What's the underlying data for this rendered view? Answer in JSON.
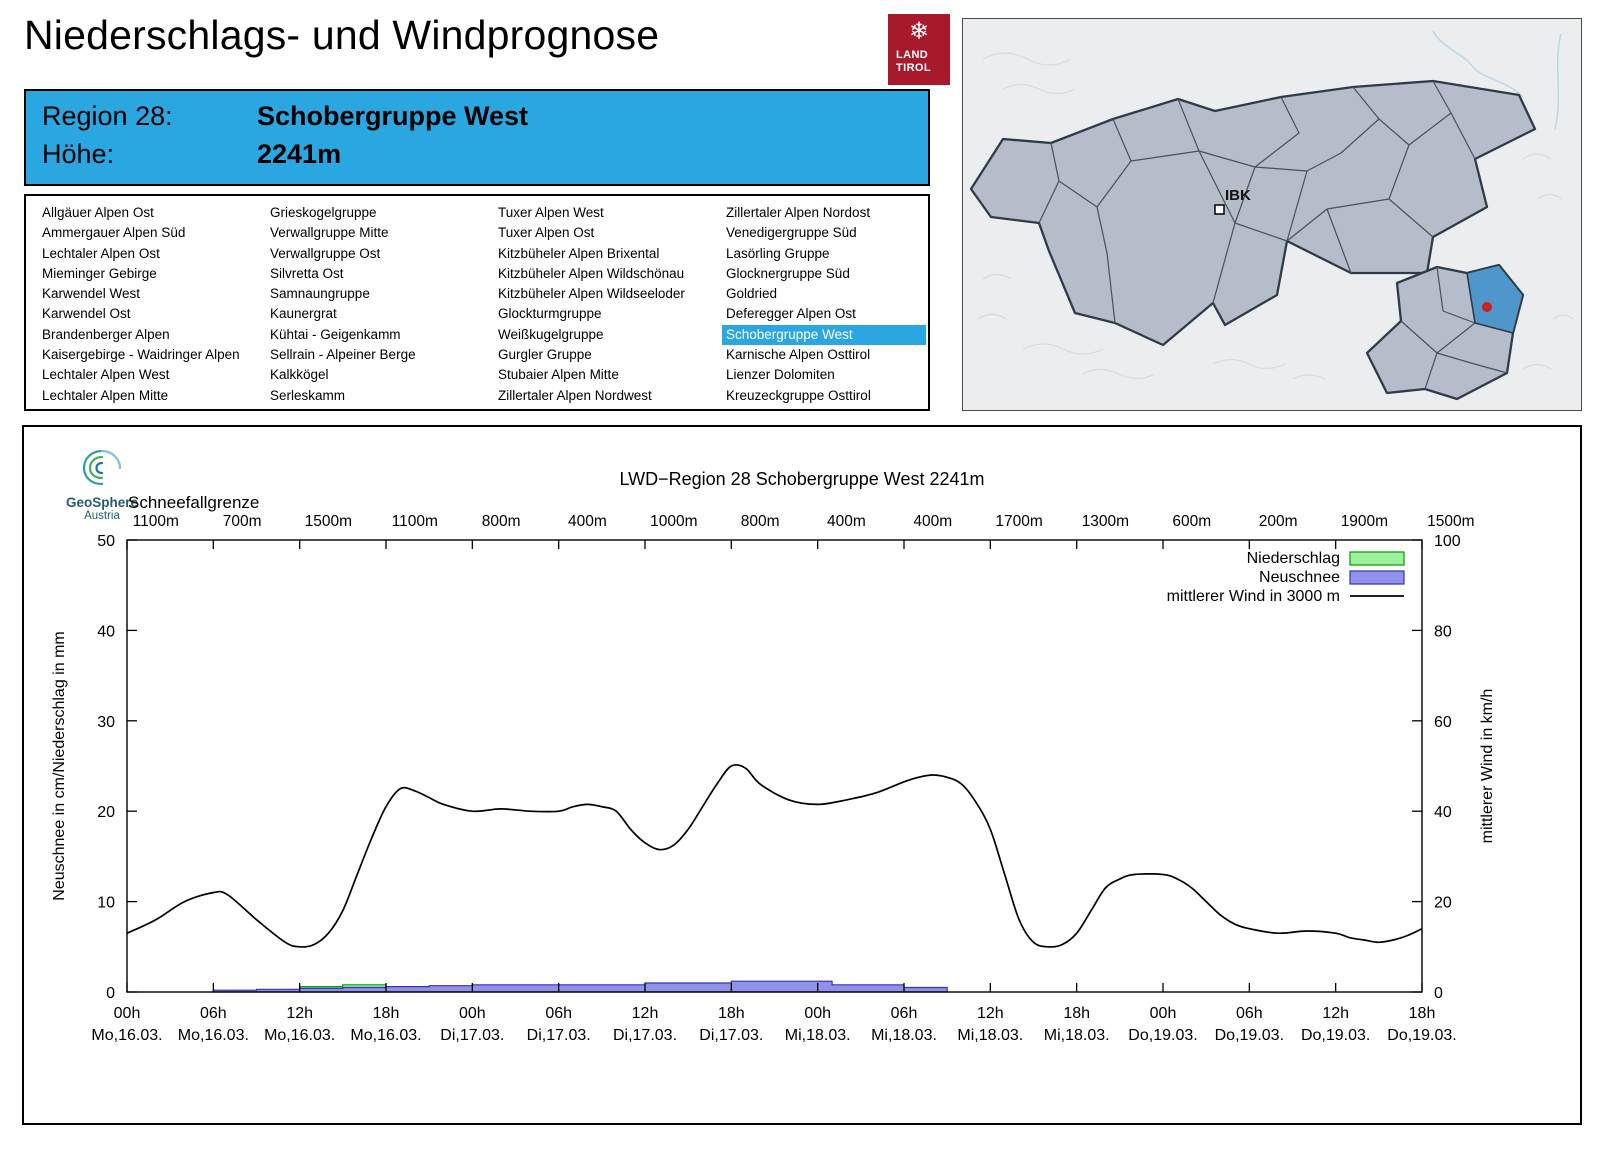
{
  "header": {
    "title": "Niederschlags- und Windprognose",
    "logo": {
      "line1": "LAND",
      "line2": "TIROL",
      "color": "#a8192c"
    },
    "region_label": "Region 28:",
    "region_value": "Schobergruppe West",
    "altitude_label": "Höhe:",
    "altitude_value": "2241m",
    "accent_color": "#2aa7e1"
  },
  "regions": {
    "selected": "Schobergruppe West",
    "columns": [
      [
        "Allgäuer Alpen Ost",
        "Ammergauer Alpen Süd",
        "Lechtaler Alpen Ost",
        "Mieminger Gebirge",
        "Karwendel West",
        "Karwendel Ost",
        "Brandenberger Alpen",
        "Kaisergebirge - Waidringer Alpen",
        "Lechtaler Alpen West",
        "Lechtaler Alpen Mitte"
      ],
      [
        "Grieskogelgruppe",
        "Verwallgruppe Mitte",
        "Verwallgruppe Ost",
        "Silvretta Ost",
        "Samnaungruppe",
        "Kaunergrat",
        "Kühtai - Geigenkamm",
        "Sellrain - Alpeiner Berge",
        "Kalkkögel",
        "Serleskamm"
      ],
      [
        "Tuxer Alpen West",
        "Tuxer Alpen Ost",
        "Kitzbüheler Alpen Brixental",
        "Kitzbüheler Alpen Wildschönau",
        "Kitzbüheler Alpen Wildseeloder",
        "Glockturmgruppe",
        "Weißkugelgruppe",
        "Gurgler Gruppe",
        "Stubaier Alpen Mitte",
        "Zillertaler Alpen Nordwest"
      ],
      [
        "Zillertaler Alpen Nordost",
        "Venedigergruppe Süd",
        "Lasörling Gruppe",
        "Glocknergruppe Süd",
        "Goldried",
        "Deferegger Alpen Ost",
        "Schobergruppe West",
        "Karnische Alpen Osttirol",
        "Lienzer Dolomiten",
        "Kreuzeckgruppe Osttirol"
      ]
    ]
  },
  "map": {
    "ibk_label": "IBK",
    "selected_region_color": "#4f97ca",
    "marker_color": "#cf1f1f"
  },
  "chart_data": {
    "type": "line",
    "title": "LWD−Region 28 Schobergruppe West 2241m",
    "source_logo": {
      "line1": "GeoSphere",
      "line2": "Austria"
    },
    "schneefallgrenze_label": "Schneefallgrenze",
    "schneefallgrenze_values": [
      "1100m",
      "700m",
      "1500m",
      "1100m",
      "800m",
      "400m",
      "1000m",
      "800m",
      "400m",
      "400m",
      "1700m",
      "1300m",
      "600m",
      "200m",
      "1900m",
      "1500m"
    ],
    "ylabel_left": "Neuschnee in cm/Niederschlag in mm",
    "ylabel_right": "mittlerer Wind in km/h",
    "ylim_left": [
      0,
      50
    ],
    "ylim_right": [
      0,
      100
    ],
    "yticks_left": [
      0,
      10,
      20,
      30,
      40,
      50
    ],
    "yticks_right": [
      0,
      20,
      40,
      60,
      80,
      100
    ],
    "x_span_hours": 90,
    "xticks": [
      {
        "hour": "00h",
        "day": "Mo,16.03."
      },
      {
        "hour": "06h",
        "day": "Mo,16.03."
      },
      {
        "hour": "12h",
        "day": "Mo,16.03."
      },
      {
        "hour": "18h",
        "day": "Mo,16.03."
      },
      {
        "hour": "00h",
        "day": "Di,17.03."
      },
      {
        "hour": "06h",
        "day": "Di,17.03."
      },
      {
        "hour": "12h",
        "day": "Di,17.03."
      },
      {
        "hour": "18h",
        "day": "Di,17.03."
      },
      {
        "hour": "00h",
        "day": "Mi,18.03."
      },
      {
        "hour": "06h",
        "day": "Mi,18.03."
      },
      {
        "hour": "12h",
        "day": "Mi,18.03."
      },
      {
        "hour": "18h",
        "day": "Mi,18.03."
      },
      {
        "hour": "00h",
        "day": "Do,19.03."
      },
      {
        "hour": "06h",
        "day": "Do,19.03."
      },
      {
        "hour": "12h",
        "day": "Do,19.03."
      },
      {
        "hour": "18h",
        "day": "Do,19.03."
      }
    ],
    "legend": [
      {
        "label": "Niederschlag",
        "swatch": "box",
        "fill": "#9ef09e",
        "stroke": "#00a000"
      },
      {
        "label": "Neuschnee",
        "swatch": "box",
        "fill": "#9191e8",
        "stroke": "#3333bb"
      },
      {
        "label": "mittlerer Wind in 3000 m",
        "swatch": "line",
        "stroke": "#000000"
      }
    ],
    "series": [
      {
        "name": "Niederschlag",
        "type": "steps",
        "axis": "left",
        "unit": "mm",
        "fill": "#9ef09e",
        "stroke": "#00a000",
        "steps": [
          [
            12,
            15,
            0.6
          ],
          [
            15,
            18,
            0.8
          ]
        ]
      },
      {
        "name": "Neuschnee",
        "type": "steps",
        "axis": "left",
        "unit": "cm",
        "fill": "#9191e8",
        "stroke": "#3333bb",
        "steps": [
          [
            6,
            9,
            0.2
          ],
          [
            9,
            12,
            0.3
          ],
          [
            12,
            15,
            0.4
          ],
          [
            15,
            18,
            0.5
          ],
          [
            18,
            21,
            0.6
          ],
          [
            21,
            24,
            0.7
          ],
          [
            24,
            36,
            0.8
          ],
          [
            36,
            42,
            1.0
          ],
          [
            42,
            49,
            1.2
          ],
          [
            49,
            54,
            0.8
          ],
          [
            54,
            57,
            0.5
          ]
        ]
      },
      {
        "name": "mittlerer Wind in 3000 m",
        "type": "line",
        "axis": "right",
        "unit": "km/h",
        "stroke": "#000000",
        "points": [
          [
            0,
            13
          ],
          [
            2,
            16
          ],
          [
            4,
            20
          ],
          [
            6,
            22
          ],
          [
            7,
            21.5
          ],
          [
            9,
            16
          ],
          [
            11,
            11
          ],
          [
            12,
            10
          ],
          [
            13,
            10.5
          ],
          [
            14,
            13
          ],
          [
            15,
            18
          ],
          [
            16,
            26
          ],
          [
            17,
            34
          ],
          [
            18,
            41
          ],
          [
            19,
            45
          ],
          [
            20,
            44.5
          ],
          [
            21,
            43
          ],
          [
            22,
            41.5
          ],
          [
            24,
            40
          ],
          [
            26,
            40.5
          ],
          [
            28,
            40
          ],
          [
            30,
            40
          ],
          [
            31,
            41
          ],
          [
            32,
            41.5
          ],
          [
            33,
            41
          ],
          [
            34,
            40
          ],
          [
            35,
            36
          ],
          [
            36,
            33
          ],
          [
            37,
            31.5
          ],
          [
            38,
            32.5
          ],
          [
            39,
            36
          ],
          [
            40,
            41
          ],
          [
            41,
            46
          ],
          [
            42,
            50
          ],
          [
            43,
            49.5
          ],
          [
            44,
            46
          ],
          [
            46,
            42.5
          ],
          [
            48,
            41.5
          ],
          [
            50,
            42.5
          ],
          [
            52,
            44
          ],
          [
            54,
            46.5
          ],
          [
            55,
            47.5
          ],
          [
            56,
            48
          ],
          [
            57,
            47.5
          ],
          [
            58,
            46
          ],
          [
            59,
            42
          ],
          [
            60,
            36
          ],
          [
            61,
            26
          ],
          [
            62,
            16
          ],
          [
            63,
            11
          ],
          [
            64,
            10
          ],
          [
            65,
            10.5
          ],
          [
            66,
            13
          ],
          [
            67,
            18
          ],
          [
            68,
            23
          ],
          [
            69,
            25
          ],
          [
            70,
            26
          ],
          [
            72,
            26
          ],
          [
            73,
            25
          ],
          [
            74,
            23
          ],
          [
            75,
            20
          ],
          [
            76,
            17
          ],
          [
            77,
            15
          ],
          [
            78,
            14
          ],
          [
            80,
            13
          ],
          [
            82,
            13.5
          ],
          [
            84,
            13
          ],
          [
            85,
            12
          ],
          [
            86,
            11.5
          ],
          [
            87,
            11
          ],
          [
            88,
            11.5
          ],
          [
            89,
            12.5
          ],
          [
            90,
            14
          ]
        ]
      }
    ]
  }
}
